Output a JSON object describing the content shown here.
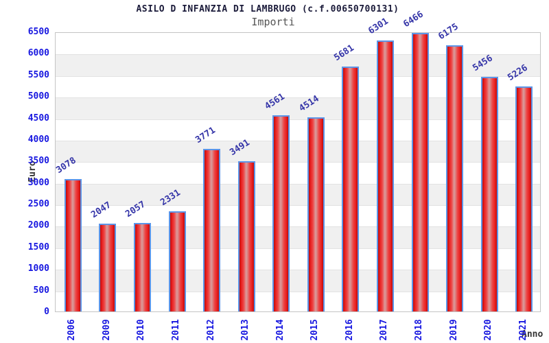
{
  "header": {
    "title": "ASILO D INFANZIA DI LAMBRUGO (c.f.00650700131)",
    "subtitle": "Importi"
  },
  "chart_data": {
    "type": "bar",
    "categories": [
      "2006",
      "2009",
      "2010",
      "2011",
      "2012",
      "2013",
      "2014",
      "2015",
      "2016",
      "2017",
      "2018",
      "2019",
      "2020",
      "2021"
    ],
    "values": [
      3078,
      2047,
      2057,
      2331,
      3771,
      3491,
      4561,
      4514,
      5681,
      6301,
      6466,
      6175,
      5456,
      5226
    ],
    "title": "ASILO D INFANZIA DI LAMBRUGO (c.f.00650700131)",
    "subtitle": "Importi",
    "xlabel": "Anno",
    "ylabel": "Euro",
    "ylim": [
      0,
      6500
    ],
    "ytick_step": 500,
    "grid": "horizontal bands alternating white/gray every 500",
    "legend": "none",
    "value_labels_rotation_deg": -33,
    "xtick_rotation_deg": -90,
    "colors": {
      "bar_fill_edge": "#b40d0d",
      "bar_fill_mid": "#ee4444",
      "bar_fill_highlight": "#dc9999",
      "bar_border": "#5c95e8",
      "tick_label": "#1717e0",
      "value_label": "#3535a8",
      "title": "#1b1b3a",
      "subtitle": "#555555",
      "band_alt": "#f0f0f0",
      "plot_border": "#c4c4c4"
    }
  }
}
